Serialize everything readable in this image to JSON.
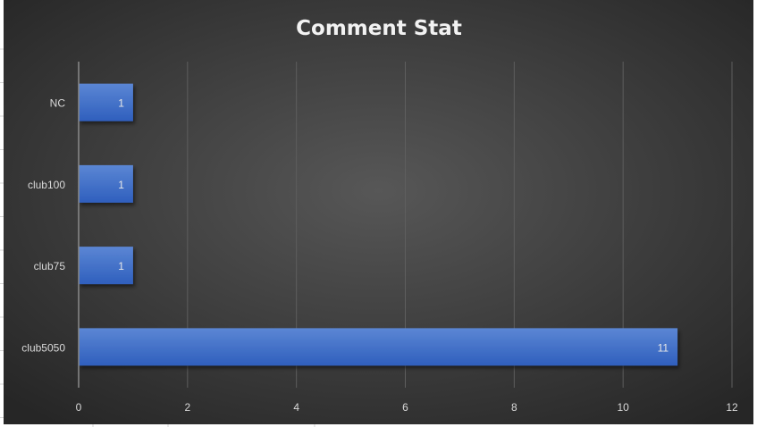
{
  "chart_data": {
    "type": "bar",
    "orientation": "horizontal",
    "title": "Comment Stat",
    "categories": [
      "NC",
      "club100",
      "club75",
      "club5050"
    ],
    "values": [
      1,
      1,
      1,
      11
    ],
    "data_labels": [
      "1",
      "1",
      "1",
      "11"
    ],
    "xlabel": "",
    "ylabel": "",
    "xlim": [
      0,
      12
    ],
    "x_ticks": [
      "0",
      "2",
      "4",
      "6",
      "8",
      "10",
      "12"
    ],
    "grid": true,
    "legend": "none",
    "colors": {
      "bar": "#3a6cc8",
      "background": "#3c3c3c",
      "text": "#d9d9d9"
    }
  }
}
